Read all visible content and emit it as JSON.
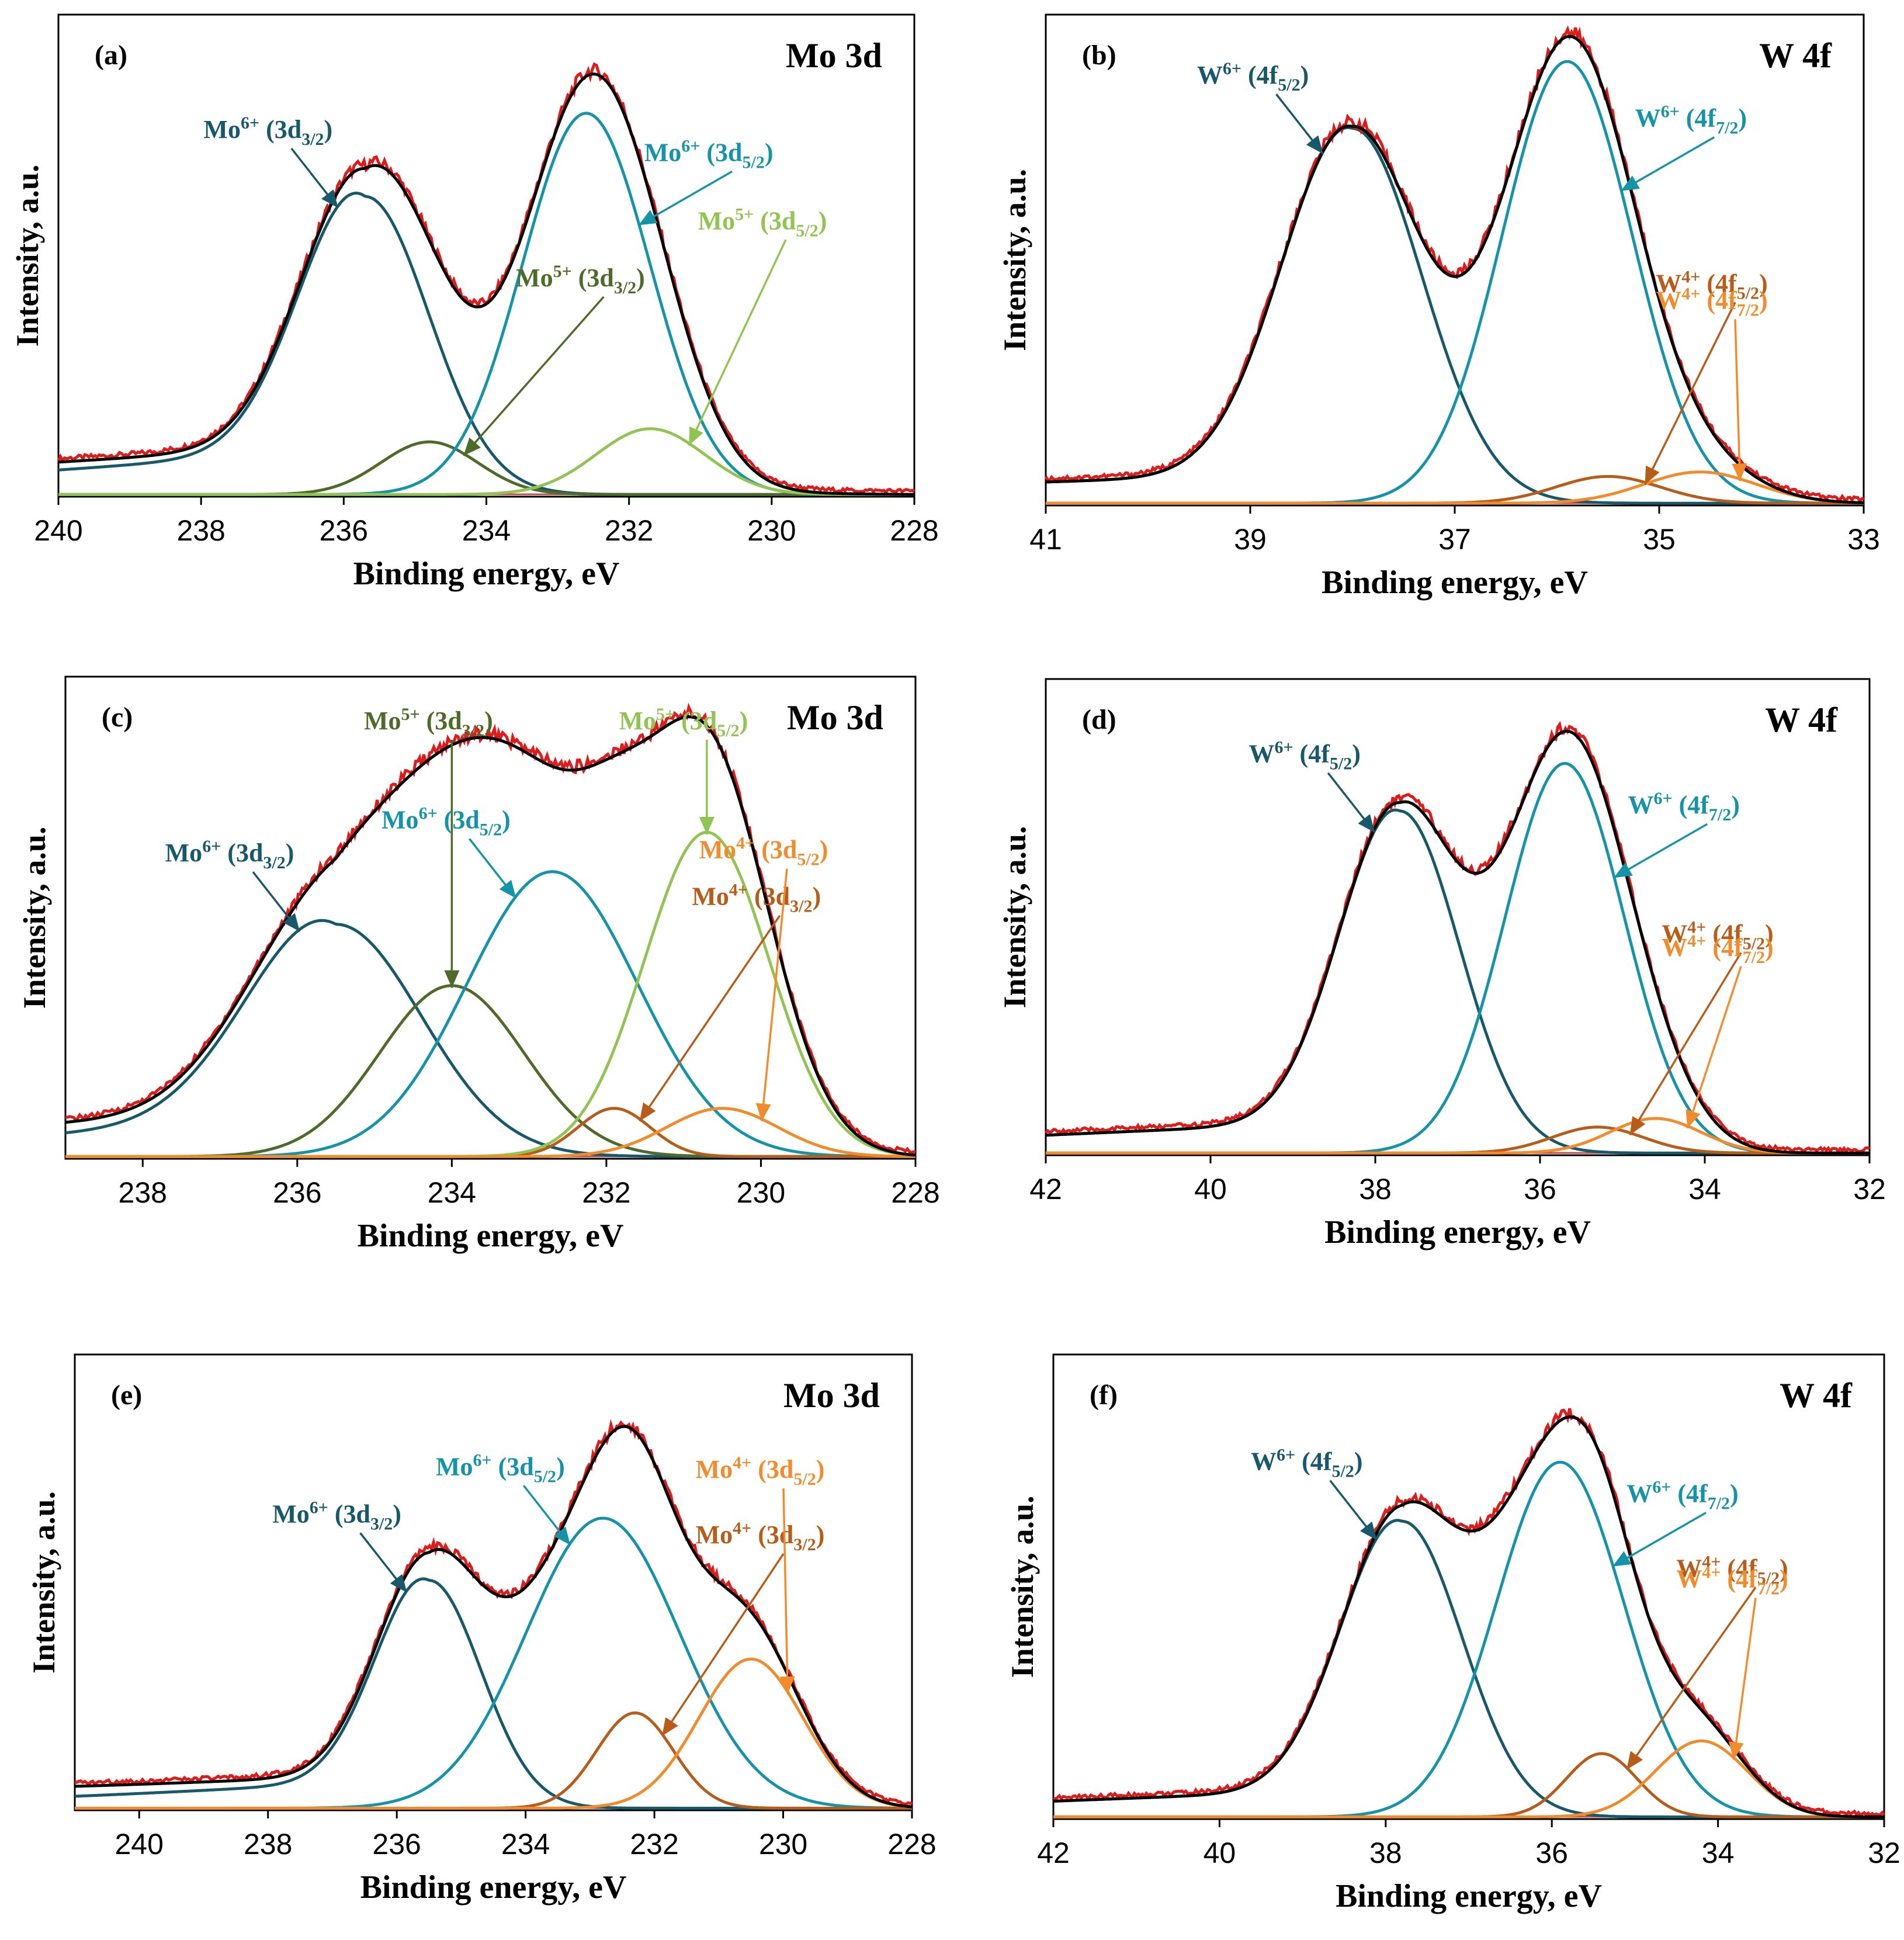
{
  "colors": {
    "exp": "#e01b1b",
    "fit": "#000000",
    "base": "#c0504d",
    "mo6_32": "#17586b",
    "mo6_52": "#1593a8",
    "mo5_32": "#4e6b2a",
    "mo5_52": "#92c453",
    "mo4_32": "#b85c1a",
    "mo4_52": "#f28b2c",
    "w6_52": "#17586b",
    "w6_72": "#1593a8",
    "w4_52": "#b85c1a",
    "w4_72": "#f28b2c"
  },
  "chart_data": [
    {
      "type": "line",
      "panel": "(a)",
      "title": "Mo 3d",
      "xlabel": "Binding  energy, eV",
      "ylabel": "Intensity, a.u.",
      "xlim": [
        240,
        228
      ],
      "xticks": [
        240,
        238,
        236,
        234,
        232,
        230,
        228
      ],
      "ylim": [
        0,
        1.1
      ],
      "background": 0.03,
      "peaks": [
        {
          "name": "Mo6+ (3d3/2)",
          "label": "Mo",
          "sup": "6+",
          "orb": "3d",
          "sub": "3/2",
          "center": 235.7,
          "height": 0.68,
          "fwhm": 2.1,
          "tail": 0.22,
          "color": "mo6_32",
          "label_pos": "upper-left"
        },
        {
          "name": "Mo5+ (3d3/2)",
          "label": "Mo",
          "sup": "5+",
          "orb": "3d",
          "sub": "3/2",
          "center": 234.8,
          "height": 0.12,
          "fwhm": 1.6,
          "tail": 0,
          "color": "mo5_32",
          "label_pos": "right"
        },
        {
          "name": "Mo6+ (3d5/2)",
          "label": "Mo",
          "sup": "6+",
          "orb": "3d",
          "sub": "5/2",
          "center": 232.6,
          "height": 0.87,
          "fwhm": 2.1,
          "tail": 0,
          "color": "mo6_52",
          "label_pos": "top-right"
        },
        {
          "name": "Mo5+ (3d5/2)",
          "label": "Mo",
          "sup": "5+",
          "orb": "3d",
          "sub": "5/2",
          "center": 231.7,
          "height": 0.15,
          "fwhm": 1.8,
          "tail": 0,
          "color": "mo5_52",
          "label_pos": "right"
        }
      ]
    },
    {
      "type": "line",
      "panel": "(b)",
      "title": "W 4f",
      "xlabel": "Binding  energy, eV",
      "ylabel": "Intensity, a.u.",
      "xlim": [
        41,
        33
      ],
      "xticks": [
        41,
        39,
        37,
        35,
        33
      ],
      "ylim": [
        0,
        1.1
      ],
      "background": 0.0,
      "peaks": [
        {
          "name": "W6+ (4f5/2)",
          "label": "W",
          "sup": "6+",
          "orb": "4f",
          "sub": "5/2",
          "center": 38.0,
          "height": 0.84,
          "fwhm": 1.6,
          "tail": 0.12,
          "color": "w6_52",
          "label_pos": "upper-left"
        },
        {
          "name": "W6+ (4f7/2)",
          "label": "W",
          "sup": "6+",
          "orb": "4f",
          "sub": "7/2",
          "center": 35.9,
          "height": 0.99,
          "fwhm": 1.5,
          "tail": 0,
          "color": "w6_72",
          "label_pos": "top-right"
        },
        {
          "name": "W4+ (4f5/2)",
          "label": "W",
          "sup": "4+",
          "orb": "4f",
          "sub": "5/2",
          "center": 35.5,
          "height": 0.06,
          "fwhm": 1.2,
          "tail": 0,
          "color": "w4_52",
          "label_pos": "right"
        },
        {
          "name": "W4+ (4f7/2)",
          "label": "W",
          "sup": "4+",
          "orb": "4f",
          "sub": "7/2",
          "center": 34.6,
          "height": 0.07,
          "fwhm": 1.3,
          "tail": 0,
          "color": "w4_72",
          "label_pos": "right"
        }
      ]
    },
    {
      "type": "line",
      "panel": "(c)",
      "title": "Mo 3d",
      "xlabel": "Binding  energy, eV",
      "ylabel": "Intensity, a.u.",
      "xlim": [
        239,
        228
      ],
      "xticks": [
        238,
        236,
        234,
        232,
        230,
        228
      ],
      "ylim": [
        0,
        1.1
      ],
      "background": 0.04,
      "peaks": [
        {
          "name": "Mo6+ (3d3/2)",
          "label": "Mo",
          "sup": "6+",
          "orb": "3d",
          "sub": "3/2",
          "center": 235.5,
          "height": 0.53,
          "fwhm": 2.6,
          "tail": 0.22,
          "color": "mo6_32",
          "label_pos": "upper-left"
        },
        {
          "name": "Mo5+ (3d3/2)",
          "label": "Mo",
          "sup": "5+",
          "orb": "3d",
          "sub": "3/2",
          "center": 234.0,
          "height": 0.39,
          "fwhm": 2.2,
          "tail": 0,
          "color": "mo5_32",
          "label_pos": "top"
        },
        {
          "name": "Mo6+ (3d5/2)",
          "label": "Mo",
          "sup": "6+",
          "orb": "3d",
          "sub": "5/2",
          "center": 232.7,
          "height": 0.65,
          "fwhm": 2.6,
          "tail": 0,
          "color": "mo6_52",
          "label_pos": "upper-left"
        },
        {
          "name": "Mo4+ (3d3/2)",
          "label": "Mo",
          "sup": "4+",
          "orb": "3d",
          "sub": "3/2",
          "center": 231.9,
          "height": 0.11,
          "fwhm": 1.1,
          "tail": 0,
          "color": "mo4_32",
          "label_pos": "right"
        },
        {
          "name": "Mo5+ (3d5/2)",
          "label": "Mo",
          "sup": "5+",
          "orb": "3d",
          "sub": "5/2",
          "center": 230.7,
          "height": 0.74,
          "fwhm": 1.9,
          "tail": 0,
          "color": "mo5_52",
          "label_pos": "top"
        },
        {
          "name": "Mo4+ (3d5/2)",
          "label": "Mo",
          "sup": "4+",
          "orb": "3d",
          "sub": "5/2",
          "center": 230.5,
          "height": 0.11,
          "fwhm": 1.7,
          "tail": 0,
          "color": "mo4_52",
          "label_pos": "right"
        }
      ]
    },
    {
      "type": "line",
      "panel": "(d)",
      "title": "W 4f",
      "xlabel": "Binding  energy, eV",
      "ylabel": "Intensity, a.u.",
      "xlim": [
        42,
        32
      ],
      "xticks": [
        42,
        40,
        38,
        36,
        34,
        32
      ],
      "ylim": [
        0,
        1.1
      ],
      "background": 0.0,
      "peaks": [
        {
          "name": "W6+ (4f5/2)",
          "label": "W",
          "sup": "6+",
          "orb": "4f",
          "sub": "5/2",
          "center": 37.7,
          "height": 0.79,
          "fwhm": 1.7,
          "tail": 0.14,
          "color": "w6_52",
          "label_pos": "upper-left"
        },
        {
          "name": "W6+ (4f7/2)",
          "label": "W",
          "sup": "6+",
          "orb": "4f",
          "sub": "7/2",
          "center": 35.7,
          "height": 0.9,
          "fwhm": 1.7,
          "tail": 0,
          "color": "w6_72",
          "label_pos": "top-right"
        },
        {
          "name": "W4+ (4f5/2)",
          "label": "W",
          "sup": "4+",
          "orb": "4f",
          "sub": "5/2",
          "center": 35.3,
          "height": 0.06,
          "fwhm": 1.3,
          "tail": 0,
          "color": "w4_52",
          "label_pos": "right"
        },
        {
          "name": "W4+ (4f7/2)",
          "label": "W",
          "sup": "4+",
          "orb": "4f",
          "sub": "7/2",
          "center": 34.6,
          "height": 0.08,
          "fwhm": 1.3,
          "tail": 0,
          "color": "w4_72",
          "label_pos": "right"
        }
      ]
    },
    {
      "type": "line",
      "panel": "(e)",
      "title": "Mo 3d",
      "xlabel": "Binding  energy, eV",
      "ylabel": "Intensity, a.u.",
      "xlim": [
        241,
        228
      ],
      "xticks": [
        240,
        238,
        236,
        234,
        232,
        230,
        228
      ],
      "ylim": [
        0,
        1.1
      ],
      "background": 0.04,
      "peaks": [
        {
          "name": "Mo6+ (3d3/2)",
          "label": "Mo",
          "sup": "6+",
          "orb": "3d",
          "sub": "3/2",
          "center": 235.5,
          "height": 0.55,
          "fwhm": 1.9,
          "tail": 0.18,
          "color": "mo6_32",
          "label_pos": "upper-left"
        },
        {
          "name": "Mo6+ (3d5/2)",
          "label": "Mo",
          "sup": "6+",
          "orb": "3d",
          "sub": "5/2",
          "center": 232.8,
          "height": 0.7,
          "fwhm": 2.8,
          "tail": 0,
          "color": "mo6_52",
          "label_pos": "upper-left"
        },
        {
          "name": "Mo4+ (3d3/2)",
          "label": "Mo",
          "sup": "4+",
          "orb": "3d",
          "sub": "3/2",
          "center": 232.3,
          "height": 0.23,
          "fwhm": 1.4,
          "tail": 0,
          "color": "mo4_32",
          "label_pos": "right"
        },
        {
          "name": "Mo4+ (3d5/2)",
          "label": "Mo",
          "sup": "4+",
          "orb": "3d",
          "sub": "5/2",
          "center": 230.5,
          "height": 0.36,
          "fwhm": 1.9,
          "tail": 0,
          "color": "mo4_52",
          "label_pos": "right"
        }
      ]
    },
    {
      "type": "line",
      "panel": "(f)",
      "title": "W 4f",
      "xlabel": "Binding  energy, eV",
      "ylabel": "Intensity, a.u.",
      "xlim": [
        42,
        32
      ],
      "xticks": [
        42,
        40,
        38,
        36,
        34,
        32
      ],
      "ylim": [
        0,
        1.1
      ],
      "background": 0.0,
      "peaks": [
        {
          "name": "W6+ (4f5/2)",
          "label": "W",
          "sup": "6+",
          "orb": "4f",
          "sub": "5/2",
          "center": 37.8,
          "height": 0.7,
          "fwhm": 1.7,
          "tail": 0.14,
          "color": "w6_52",
          "label_pos": "upper-left"
        },
        {
          "name": "W6+ (4f7/2)",
          "label": "W",
          "sup": "6+",
          "orb": "4f",
          "sub": "7/2",
          "center": 35.9,
          "height": 0.84,
          "fwhm": 1.8,
          "tail": 0,
          "color": "w6_72",
          "label_pos": "top-right"
        },
        {
          "name": "W4+ (4f5/2)",
          "label": "W",
          "sup": "4+",
          "orb": "4f",
          "sub": "5/2",
          "center": 35.4,
          "height": 0.15,
          "fwhm": 1.0,
          "tail": 0,
          "color": "w4_52",
          "label_pos": "right"
        },
        {
          "name": "W4+ (4f7/2)",
          "label": "W",
          "sup": "4+",
          "orb": "4f",
          "sub": "7/2",
          "center": 34.2,
          "height": 0.18,
          "fwhm": 1.3,
          "tail": 0,
          "color": "w4_72",
          "label_pos": "right"
        }
      ]
    }
  ]
}
